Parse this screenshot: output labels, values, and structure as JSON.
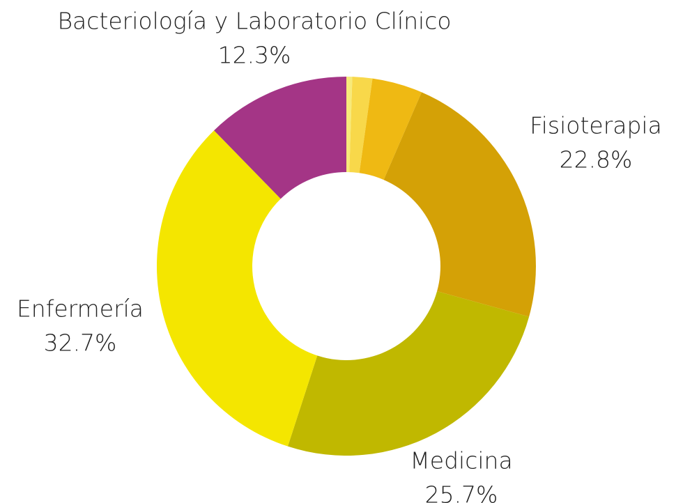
{
  "chart_data": {
    "type": "donut",
    "categories": [
      null,
      null,
      null,
      "Fisioterapia",
      "Medicina",
      "Enfermería",
      "Bacteriología y Laboratorio Clínico"
    ],
    "values": [
      0.5,
      1.7,
      4.3,
      22.8,
      25.7,
      32.7,
      12.3
    ],
    "value_labels": [
      null,
      null,
      null,
      "22.8%",
      "25.7%",
      "32.7%",
      "12.3%"
    ],
    "colors": [
      "#f7ea7a",
      "#f8d84a",
      "#efb913",
      "#d4a106",
      "#c0b800",
      "#f4e600",
      "#a43586"
    ]
  }
}
